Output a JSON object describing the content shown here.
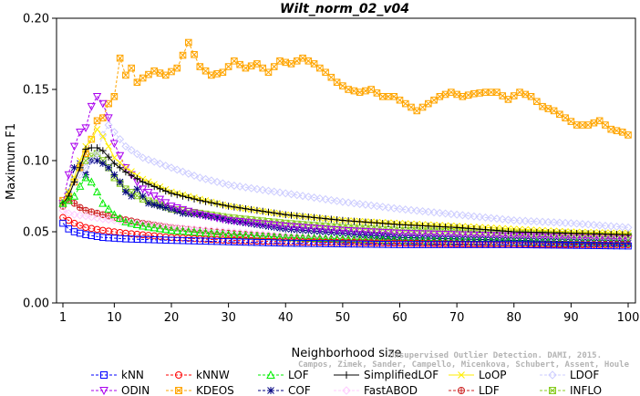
{
  "chart_data": {
    "type": "line",
    "title": "Wilt_norm_02_v04",
    "xlabel": "Neighborhood size",
    "ylabel": "Maximum F1",
    "xlim": [
      1,
      100
    ],
    "ylim": [
      0,
      0.2
    ],
    "x_ticks": [
      1,
      10,
      20,
      30,
      40,
      50,
      60,
      70,
      80,
      90,
      100
    ],
    "y_ticks": [
      "0.00",
      "0.05",
      "0.10",
      "0.15",
      "0.20"
    ],
    "legend_position": "bottom",
    "credit": {
      "line1": "Unsupervised Outlier Detection. DAMI, 2015.",
      "line2": "Campos, Zimek, Sander, Campello, Micenkova, Schubert, Assent, Houle"
    },
    "series": [
      {
        "name": "kNN",
        "color": "#0000ff",
        "marker": "square",
        "line": "dash",
        "points": [
          [
            1,
            0.056
          ],
          [
            2,
            0.052
          ],
          [
            3,
            0.05
          ],
          [
            5,
            0.048
          ],
          [
            8,
            0.046
          ],
          [
            12,
            0.045
          ],
          [
            20,
            0.044
          ],
          [
            30,
            0.043
          ],
          [
            40,
            0.042
          ],
          [
            60,
            0.041
          ],
          [
            80,
            0.041
          ],
          [
            100,
            0.04
          ]
        ]
      },
      {
        "name": "kNNW",
        "color": "#ff0000",
        "marker": "circle",
        "line": "dash",
        "points": [
          [
            1,
            0.06
          ],
          [
            2,
            0.058
          ],
          [
            3,
            0.056
          ],
          [
            5,
            0.053
          ],
          [
            8,
            0.051
          ],
          [
            12,
            0.049
          ],
          [
            20,
            0.046
          ],
          [
            30,
            0.044
          ],
          [
            40,
            0.043
          ],
          [
            60,
            0.042
          ],
          [
            80,
            0.041
          ],
          [
            100,
            0.041
          ]
        ]
      },
      {
        "name": "LOF",
        "color": "#00ee00",
        "marker": "triangle",
        "line": "dash",
        "points": [
          [
            1,
            0.07
          ],
          [
            2,
            0.072
          ],
          [
            3,
            0.075
          ],
          [
            4,
            0.082
          ],
          [
            5,
            0.088
          ],
          [
            6,
            0.085
          ],
          [
            7,
            0.078
          ],
          [
            8,
            0.07
          ],
          [
            10,
            0.062
          ],
          [
            12,
            0.057
          ],
          [
            15,
            0.054
          ],
          [
            20,
            0.051
          ],
          [
            30,
            0.048
          ],
          [
            40,
            0.046
          ],
          [
            60,
            0.044
          ],
          [
            80,
            0.043
          ],
          [
            100,
            0.042
          ]
        ]
      },
      {
        "name": "SimplifiedLOF",
        "color": "#000000",
        "marker": "plus",
        "line": "solid",
        "points": [
          [
            1,
            0.07
          ],
          [
            2,
            0.075
          ],
          [
            3,
            0.085
          ],
          [
            4,
            0.095
          ],
          [
            5,
            0.108
          ],
          [
            6,
            0.109
          ],
          [
            7,
            0.109
          ],
          [
            8,
            0.107
          ],
          [
            10,
            0.098
          ],
          [
            12,
            0.092
          ],
          [
            15,
            0.085
          ],
          [
            20,
            0.077
          ],
          [
            25,
            0.072
          ],
          [
            30,
            0.068
          ],
          [
            40,
            0.062
          ],
          [
            50,
            0.058
          ],
          [
            60,
            0.055
          ],
          [
            70,
            0.053
          ],
          [
            80,
            0.05
          ],
          [
            90,
            0.049
          ],
          [
            100,
            0.048
          ]
        ]
      },
      {
        "name": "LoOP",
        "color": "#ffee00",
        "marker": "x",
        "line": "solid",
        "points": [
          [
            1,
            0.07
          ],
          [
            2,
            0.078
          ],
          [
            3,
            0.088
          ],
          [
            4,
            0.1
          ],
          [
            5,
            0.11
          ],
          [
            6,
            0.115
          ],
          [
            7,
            0.122
          ],
          [
            8,
            0.117
          ],
          [
            9,
            0.11
          ],
          [
            10,
            0.102
          ],
          [
            12,
            0.095
          ],
          [
            15,
            0.087
          ],
          [
            20,
            0.078
          ],
          [
            30,
            0.068
          ],
          [
            40,
            0.062
          ],
          [
            50,
            0.058
          ],
          [
            60,
            0.056
          ],
          [
            70,
            0.054
          ],
          [
            80,
            0.052
          ],
          [
            90,
            0.05
          ],
          [
            100,
            0.049
          ]
        ]
      },
      {
        "name": "LDOF",
        "color": "#ccccff",
        "marker": "diamond",
        "line": "dash",
        "points": [
          [
            1,
            0.07
          ],
          [
            2,
            0.078
          ],
          [
            3,
            0.085
          ],
          [
            5,
            0.095
          ],
          [
            7,
            0.105
          ],
          [
            8,
            0.118
          ],
          [
            9,
            0.125
          ],
          [
            10,
            0.12
          ],
          [
            12,
            0.11
          ],
          [
            15,
            0.102
          ],
          [
            20,
            0.095
          ],
          [
            25,
            0.088
          ],
          [
            30,
            0.083
          ],
          [
            40,
            0.077
          ],
          [
            50,
            0.071
          ],
          [
            60,
            0.066
          ],
          [
            70,
            0.062
          ],
          [
            80,
            0.058
          ],
          [
            90,
            0.056
          ],
          [
            100,
            0.053
          ]
        ]
      },
      {
        "name": "ODIN",
        "color": "#aa00ee",
        "marker": "triangle-down",
        "line": "dash",
        "points": [
          [
            1,
            0.07
          ],
          [
            2,
            0.09
          ],
          [
            3,
            0.11
          ],
          [
            4,
            0.12
          ],
          [
            5,
            0.123
          ],
          [
            6,
            0.138
          ],
          [
            7,
            0.145
          ],
          [
            8,
            0.14
          ],
          [
            9,
            0.13
          ],
          [
            10,
            0.112
          ],
          [
            12,
            0.095
          ],
          [
            15,
            0.08
          ],
          [
            20,
            0.068
          ],
          [
            25,
            0.062
          ],
          [
            30,
            0.058
          ],
          [
            40,
            0.054
          ],
          [
            50,
            0.051
          ],
          [
            60,
            0.049
          ],
          [
            70,
            0.048
          ],
          [
            80,
            0.047
          ],
          [
            90,
            0.046
          ],
          [
            100,
            0.045
          ]
        ]
      },
      {
        "name": "KDEOS",
        "color": "#ffa500",
        "marker": "square-x",
        "line": "dash",
        "points": [
          [
            1,
            0.072
          ],
          [
            2,
            0.075
          ],
          [
            3,
            0.085
          ],
          [
            4,
            0.095
          ],
          [
            5,
            0.105
          ],
          [
            6,
            0.115
          ],
          [
            7,
            0.128
          ],
          [
            8,
            0.13
          ],
          [
            9,
            0.14
          ],
          [
            10,
            0.145
          ],
          [
            11,
            0.172
          ],
          [
            12,
            0.16
          ],
          [
            13,
            0.165
          ],
          [
            14,
            0.155
          ],
          [
            15,
            0.158
          ],
          [
            17,
            0.163
          ],
          [
            19,
            0.16
          ],
          [
            21,
            0.165
          ],
          [
            23,
            0.183
          ],
          [
            25,
            0.166
          ],
          [
            27,
            0.16
          ],
          [
            29,
            0.162
          ],
          [
            31,
            0.17
          ],
          [
            33,
            0.165
          ],
          [
            35,
            0.168
          ],
          [
            37,
            0.162
          ],
          [
            39,
            0.17
          ],
          [
            41,
            0.168
          ],
          [
            43,
            0.172
          ],
          [
            45,
            0.168
          ],
          [
            47,
            0.162
          ],
          [
            49,
            0.155
          ],
          [
            51,
            0.15
          ],
          [
            53,
            0.148
          ],
          [
            55,
            0.15
          ],
          [
            57,
            0.145
          ],
          [
            59,
            0.145
          ],
          [
            61,
            0.14
          ],
          [
            63,
            0.135
          ],
          [
            65,
            0.14
          ],
          [
            67,
            0.145
          ],
          [
            69,
            0.148
          ],
          [
            71,
            0.145
          ],
          [
            73,
            0.147
          ],
          [
            75,
            0.148
          ],
          [
            77,
            0.148
          ],
          [
            79,
            0.143
          ],
          [
            81,
            0.148
          ],
          [
            83,
            0.145
          ],
          [
            85,
            0.138
          ],
          [
            87,
            0.135
          ],
          [
            89,
            0.13
          ],
          [
            91,
            0.125
          ],
          [
            93,
            0.125
          ],
          [
            95,
            0.128
          ],
          [
            97,
            0.122
          ],
          [
            99,
            0.12
          ],
          [
            100,
            0.118
          ]
        ]
      },
      {
        "name": "COF",
        "color": "#000080",
        "marker": "star",
        "line": "dash",
        "points": [
          [
            1,
            0.07
          ],
          [
            2,
            0.078
          ],
          [
            3,
            0.095
          ],
          [
            4,
            0.098
          ],
          [
            5,
            0.09
          ],
          [
            6,
            0.1
          ],
          [
            7,
            0.1
          ],
          [
            8,
            0.098
          ],
          [
            9,
            0.095
          ],
          [
            10,
            0.09
          ],
          [
            11,
            0.085
          ],
          [
            12,
            0.078
          ],
          [
            13,
            0.075
          ],
          [
            14,
            0.08
          ],
          [
            15,
            0.075
          ],
          [
            16,
            0.07
          ],
          [
            18,
            0.068
          ],
          [
            20,
            0.066
          ],
          [
            22,
            0.063
          ],
          [
            25,
            0.062
          ],
          [
            28,
            0.06
          ],
          [
            30,
            0.058
          ],
          [
            35,
            0.055
          ],
          [
            40,
            0.052
          ],
          [
            50,
            0.049
          ],
          [
            60,
            0.046
          ],
          [
            70,
            0.045
          ],
          [
            80,
            0.044
          ],
          [
            90,
            0.043
          ],
          [
            100,
            0.042
          ]
        ]
      },
      {
        "name": "FastABOD",
        "color": "#ffccff",
        "marker": "diamond",
        "line": "dash",
        "points": [
          [
            1,
            0.065
          ],
          [
            2,
            0.063
          ],
          [
            3,
            0.062
          ],
          [
            5,
            0.061
          ],
          [
            8,
            0.059
          ],
          [
            12,
            0.057
          ],
          [
            20,
            0.053
          ],
          [
            30,
            0.05
          ],
          [
            40,
            0.047
          ],
          [
            50,
            0.045
          ],
          [
            60,
            0.044
          ],
          [
            80,
            0.043
          ],
          [
            100,
            0.042
          ]
        ]
      },
      {
        "name": "LDF",
        "color": "#cc2222",
        "marker": "circle-plus",
        "line": "dash",
        "points": [
          [
            1,
            0.068
          ],
          [
            2,
            0.072
          ],
          [
            3,
            0.07
          ],
          [
            4,
            0.067
          ],
          [
            5,
            0.065
          ],
          [
            7,
            0.063
          ],
          [
            10,
            0.06
          ],
          [
            15,
            0.056
          ],
          [
            20,
            0.053
          ],
          [
            30,
            0.049
          ],
          [
            40,
            0.046
          ],
          [
            50,
            0.044
          ],
          [
            60,
            0.043
          ],
          [
            80,
            0.042
          ],
          [
            100,
            0.041
          ]
        ]
      },
      {
        "name": "INFLO",
        "color": "#88cc22",
        "marker": "square-x",
        "line": "dash",
        "points": [
          [
            1,
            0.07
          ],
          [
            2,
            0.076
          ],
          [
            3,
            0.085
          ],
          [
            4,
            0.095
          ],
          [
            5,
            0.1
          ],
          [
            6,
            0.103
          ],
          [
            7,
            0.105
          ],
          [
            8,
            0.1
          ],
          [
            9,
            0.095
          ],
          [
            10,
            0.088
          ],
          [
            12,
            0.08
          ],
          [
            15,
            0.073
          ],
          [
            20,
            0.066
          ],
          [
            30,
            0.06
          ],
          [
            40,
            0.056
          ],
          [
            50,
            0.053
          ],
          [
            60,
            0.051
          ],
          [
            70,
            0.05
          ],
          [
            80,
            0.049
          ],
          [
            90,
            0.048
          ],
          [
            100,
            0.047
          ]
        ]
      }
    ]
  }
}
